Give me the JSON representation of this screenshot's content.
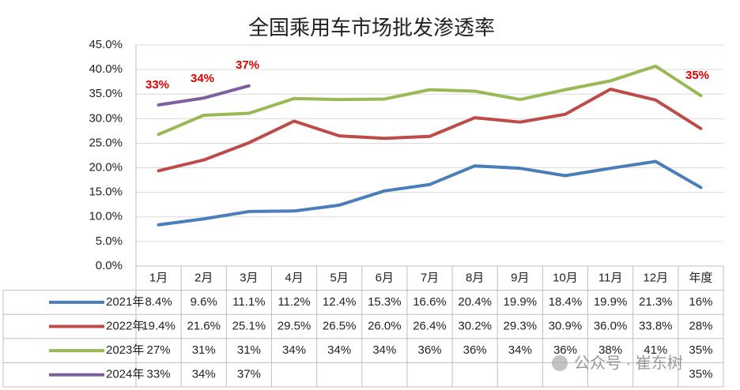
{
  "chart_data": {
    "type": "line",
    "title": "全国乘用车市场批发渗透率",
    "categories": [
      "1月",
      "2月",
      "3月",
      "4月",
      "5月",
      "6月",
      "7月",
      "8月",
      "9月",
      "10月",
      "11月",
      "12月",
      "年度"
    ],
    "ylim": [
      0,
      45
    ],
    "yticks": [
      {
        "value": 0,
        "label": "0.0%"
      },
      {
        "value": 5,
        "label": "5.0%"
      },
      {
        "value": 10,
        "label": "10.0%"
      },
      {
        "value": 15,
        "label": "15.0%"
      },
      {
        "value": 20,
        "label": "20.0%"
      },
      {
        "value": 25,
        "label": "25.0%"
      },
      {
        "value": 30,
        "label": "30.0%"
      },
      {
        "value": 35,
        "label": "35.0%"
      },
      {
        "value": 40,
        "label": "40.0%"
      },
      {
        "value": 45,
        "label": "45.0%"
      }
    ],
    "grid": true,
    "series": [
      {
        "name": "2021年",
        "color": "#4a7ebb",
        "values": [
          8.4,
          9.6,
          11.1,
          11.2,
          12.4,
          15.3,
          16.6,
          20.4,
          19.9,
          18.4,
          19.9,
          21.3,
          16
        ],
        "value_labels": [
          "8.4%",
          "9.6%",
          "11.1%",
          "11.2%",
          "12.4%",
          "15.3%",
          "16.6%",
          "20.4%",
          "19.9%",
          "18.4%",
          "19.9%",
          "21.3%",
          "16%"
        ]
      },
      {
        "name": "2022年",
        "color": "#be4b48",
        "values": [
          19.4,
          21.6,
          25.1,
          29.5,
          26.5,
          26.0,
          26.4,
          30.2,
          29.3,
          30.9,
          36.0,
          33.8,
          28
        ],
        "value_labels": [
          "19.4%",
          "21.6%",
          "25.1%",
          "29.5%",
          "26.5%",
          "26.0%",
          "26.4%",
          "30.2%",
          "29.3%",
          "30.9%",
          "36.0%",
          "33.8%",
          "28%"
        ]
      },
      {
        "name": "2023年",
        "color": "#98b954",
        "values": [
          26.8,
          30.7,
          31.1,
          34.1,
          33.9,
          34.0,
          35.9,
          35.6,
          33.9,
          35.9,
          37.7,
          40.7,
          34.7
        ],
        "value_labels": [
          "27%",
          "31%",
          "31%",
          "34%",
          "34%",
          "34%",
          "36%",
          "36%",
          "34%",
          "36%",
          "38%",
          "41%",
          "35%"
        ]
      },
      {
        "name": "2024年",
        "color": "#7d5fa0",
        "values": [
          32.8,
          34.2,
          36.7,
          null,
          null,
          null,
          null,
          null,
          null,
          null,
          null,
          null,
          35
        ],
        "value_labels": [
          "33%",
          "34%",
          "37%",
          null,
          null,
          null,
          null,
          null,
          null,
          null,
          null,
          null,
          "35%"
        ]
      }
    ],
    "annotations": [
      "33%",
      "34%",
      "37%",
      "35%"
    ],
    "watermark": "公众号 · 崔东树"
  }
}
